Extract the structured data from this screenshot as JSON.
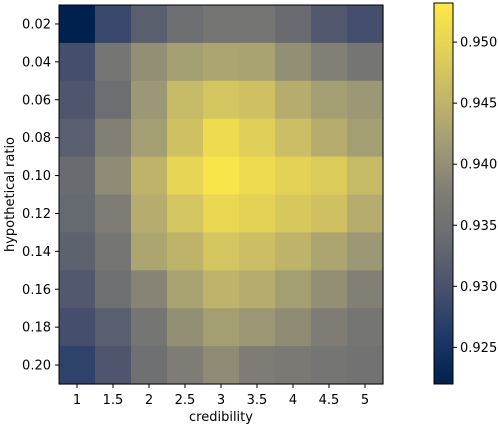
{
  "chart_data": {
    "type": "heatmap",
    "colormap": "cividis",
    "title": "",
    "xlabel": "credibility",
    "ylabel": "hypothetical ratio",
    "x_categories": [
      "1",
      "1.5",
      "2",
      "2.5",
      "3",
      "3.5",
      "4",
      "4.5",
      "5"
    ],
    "y_categories": [
      "0.02",
      "0.04",
      "0.06",
      "0.08",
      "0.10",
      "0.12",
      "0.14",
      "0.16",
      "0.18",
      "0.20"
    ],
    "values": [
      [
        0.922,
        0.9285,
        0.932,
        0.9345,
        0.936,
        0.936,
        0.934,
        0.931,
        0.9295
      ],
      [
        0.9295,
        0.936,
        0.94,
        0.942,
        0.943,
        0.9425,
        0.94,
        0.938,
        0.936
      ],
      [
        0.9305,
        0.9345,
        0.941,
        0.946,
        0.9475,
        0.947,
        0.944,
        0.942,
        0.941
      ],
      [
        0.932,
        0.938,
        0.942,
        0.947,
        0.951,
        0.949,
        0.9465,
        0.944,
        0.942
      ],
      [
        0.934,
        0.9395,
        0.945,
        0.95,
        0.9525,
        0.951,
        0.9495,
        0.9485,
        0.946
      ],
      [
        0.9335,
        0.9375,
        0.944,
        0.9475,
        0.9505,
        0.9495,
        0.948,
        0.947,
        0.944
      ],
      [
        0.9325,
        0.936,
        0.943,
        0.945,
        0.9475,
        0.9465,
        0.945,
        0.943,
        0.941
      ],
      [
        0.931,
        0.935,
        0.9385,
        0.9425,
        0.945,
        0.944,
        0.942,
        0.94,
        0.938
      ],
      [
        0.9295,
        0.932,
        0.936,
        0.94,
        0.942,
        0.941,
        0.9395,
        0.9375,
        0.936
      ],
      [
        0.9275,
        0.9305,
        0.935,
        0.9375,
        0.9395,
        0.9375,
        0.937,
        0.936,
        0.9355
      ]
    ],
    "colorbar": {
      "range": [
        0.922,
        0.9532
      ],
      "ticks": [
        "0.925",
        "0.930",
        "0.935",
        "0.940",
        "0.945",
        "0.950"
      ],
      "tick_values": [
        0.925,
        0.93,
        0.935,
        0.94,
        0.945,
        0.95
      ]
    },
    "grid": false,
    "legend": "colorbar-right"
  }
}
